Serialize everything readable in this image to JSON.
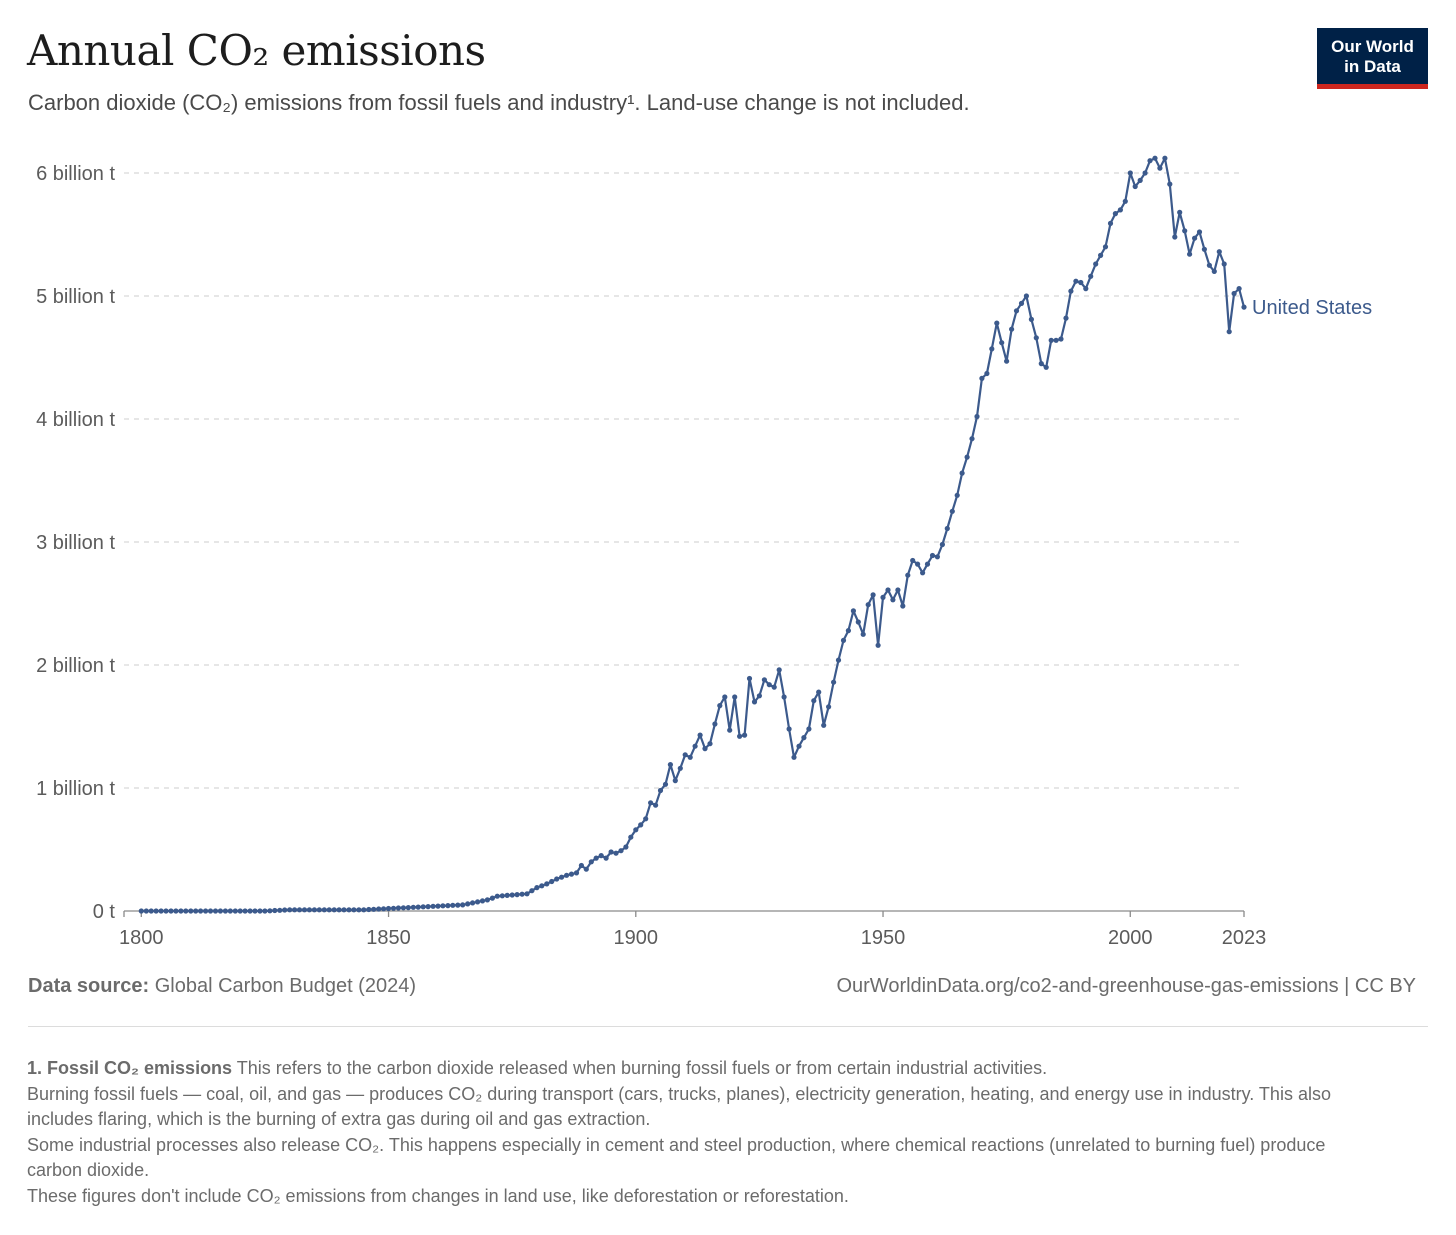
{
  "title": "Annual CO₂ emissions",
  "subtitle": "Carbon dioxide (CO₂) emissions from fossil fuels and industry¹. Land-use change is not included.",
  "logo": {
    "line1": "Our World",
    "line2": "in Data",
    "bg_color": "#002147",
    "accent_color": "#ce261e"
  },
  "footer": {
    "source_label": "Data source:",
    "source_text": "Global Carbon Budget (2024)",
    "url_text": "OurWorldinData.org/co2-and-greenhouse-gas-emissions | CC BY"
  },
  "notes": {
    "heading": "1. Fossil CO₂ emissions",
    "intro": "This refers to the carbon dioxide released when burning fossil fuels or from certain industrial activities.",
    "para1": "Burning fossil fuels — coal, oil, and gas — produces CO₂ during transport (cars, trucks, planes), electricity generation, heating, and energy use in industry. This also includes flaring, which is the burning of extra gas during oil and gas extraction.",
    "para2": "Some industrial processes also release CO₂. This happens especially in cement and steel production, where chemical reactions (unrelated to burning fuel) produce carbon dioxide.",
    "para3": "These figures don't include CO₂ emissions from changes in land use, like deforestation or reforestation."
  },
  "chart_data": {
    "type": "line",
    "title": "Annual CO₂ emissions",
    "xlabel": "",
    "ylabel": "",
    "xlim": [
      1800,
      2023
    ],
    "ylim": [
      0,
      6
    ],
    "x_ticks": [
      1800,
      1850,
      1900,
      1950,
      2000,
      2023
    ],
    "y_ticks": [
      0,
      1,
      2,
      3,
      4,
      5,
      6
    ],
    "y_tick_labels": [
      "0 t",
      "1 billion t",
      "2 billion t",
      "3 billion t",
      "4 billion t",
      "5 billion t",
      "6 billion t"
    ],
    "grid": "horizontal dashed",
    "legend": "inline label at line end",
    "series": [
      {
        "name": "United States",
        "color": "#3c5a8c",
        "x": [
          1800,
          1805,
          1810,
          1815,
          1820,
          1825,
          1830,
          1835,
          1840,
          1845,
          1850,
          1855,
          1860,
          1865,
          1870,
          1872,
          1875,
          1878,
          1880,
          1882,
          1884,
          1886,
          1887,
          1888,
          1889,
          1890,
          1891,
          1892,
          1893,
          1894,
          1895,
          1896,
          1897,
          1898,
          1899,
          1900,
          1901,
          1902,
          1903,
          1904,
          1905,
          1906,
          1907,
          1908,
          1909,
          1910,
          1911,
          1912,
          1913,
          1914,
          1915,
          1916,
          1917,
          1918,
          1919,
          1920,
          1921,
          1922,
          1923,
          1924,
          1925,
          1926,
          1927,
          1928,
          1929,
          1930,
          1931,
          1932,
          1933,
          1934,
          1935,
          1936,
          1937,
          1938,
          1939,
          1940,
          1941,
          1942,
          1943,
          1944,
          1945,
          1946,
          1947,
          1948,
          1949,
          1950,
          1951,
          1952,
          1953,
          1954,
          1955,
          1956,
          1957,
          1958,
          1959,
          1960,
          1961,
          1962,
          1963,
          1964,
          1965,
          1966,
          1967,
          1968,
          1969,
          1970,
          1971,
          1972,
          1973,
          1974,
          1975,
          1976,
          1977,
          1978,
          1979,
          1980,
          1981,
          1982,
          1983,
          1984,
          1985,
          1986,
          1987,
          1988,
          1989,
          1990,
          1991,
          1992,
          1993,
          1994,
          1995,
          1996,
          1997,
          1998,
          1999,
          2000,
          2001,
          2002,
          2003,
          2004,
          2005,
          2006,
          2007,
          2008,
          2009,
          2010,
          2011,
          2012,
          2013,
          2014,
          2015,
          2016,
          2017,
          2018,
          2019,
          2020,
          2021,
          2022,
          2023
        ],
        "values": [
          0.0,
          0.0,
          0.0,
          0.0,
          0.0,
          0.0,
          0.01,
          0.01,
          0.01,
          0.01,
          0.02,
          0.03,
          0.04,
          0.05,
          0.09,
          0.12,
          0.13,
          0.14,
          0.19,
          0.22,
          0.26,
          0.29,
          0.3,
          0.31,
          0.37,
          0.34,
          0.4,
          0.43,
          0.45,
          0.43,
          0.48,
          0.47,
          0.49,
          0.52,
          0.6,
          0.66,
          0.7,
          0.75,
          0.88,
          0.86,
          0.98,
          1.03,
          1.19,
          1.06,
          1.16,
          1.27,
          1.25,
          1.34,
          1.43,
          1.32,
          1.36,
          1.52,
          1.67,
          1.74,
          1.47,
          1.74,
          1.42,
          1.43,
          1.89,
          1.7,
          1.75,
          1.88,
          1.84,
          1.82,
          1.96,
          1.74,
          1.48,
          1.25,
          1.34,
          1.41,
          1.48,
          1.71,
          1.78,
          1.51,
          1.66,
          1.86,
          2.04,
          2.2,
          2.28,
          2.44,
          2.35,
          2.25,
          2.49,
          2.57,
          2.16,
          2.55,
          2.61,
          2.53,
          2.61,
          2.48,
          2.73,
          2.85,
          2.82,
          2.75,
          2.82,
          2.89,
          2.88,
          2.98,
          3.11,
          3.25,
          3.38,
          3.56,
          3.69,
          3.84,
          4.02,
          4.33,
          4.37,
          4.57,
          4.78,
          4.62,
          4.47,
          4.73,
          4.88,
          4.94,
          5.0,
          4.81,
          4.66,
          4.45,
          4.42,
          4.64,
          4.64,
          4.65,
          4.82,
          5.04,
          5.12,
          5.11,
          5.06,
          5.16,
          5.26,
          5.33,
          5.4,
          5.59,
          5.67,
          5.7,
          5.77,
          6.0,
          5.89,
          5.94,
          6.0,
          6.1,
          6.12,
          6.04,
          6.12,
          5.91,
          5.48,
          5.68,
          5.53,
          5.34,
          5.47,
          5.52,
          5.38,
          5.25,
          5.2,
          5.36,
          5.26,
          4.71,
          5.02,
          5.06,
          4.91
        ]
      }
    ]
  }
}
